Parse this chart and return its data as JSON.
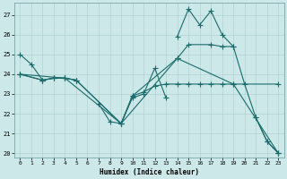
{
  "xlabel": "Humidex (Indice chaleur)",
  "bg_color": "#cce8e8",
  "line_color": "#1a6b6b",
  "grid_color": "#aacccc",
  "xlim": [
    -0.5,
    23.5
  ],
  "ylim": [
    19.8,
    27.6
  ],
  "yticks": [
    20,
    21,
    22,
    23,
    24,
    25,
    26,
    27
  ],
  "xticks": [
    0,
    1,
    2,
    3,
    4,
    5,
    6,
    7,
    8,
    9,
    10,
    11,
    12,
    13,
    14,
    15,
    16,
    17,
    18,
    19,
    20,
    21,
    22,
    23
  ],
  "line1_segments": [
    {
      "x": [
        0,
        1,
        2,
        3,
        4,
        5
      ],
      "y": [
        25.0,
        24.5,
        23.7,
        23.8,
        23.8,
        23.7
      ]
    },
    {
      "x": [
        7,
        8,
        9,
        10,
        11,
        12,
        13
      ],
      "y": [
        22.5,
        21.6,
        21.5,
        22.8,
        23.0,
        24.3,
        22.8
      ]
    },
    {
      "x": [
        14,
        15,
        16,
        17,
        18,
        19
      ],
      "y": [
        25.9,
        27.3,
        26.5,
        27.2,
        26.0,
        25.4
      ]
    },
    {
      "x": [
        21,
        22,
        23
      ],
      "y": [
        21.8,
        20.6,
        20.0
      ]
    }
  ],
  "line2": {
    "x": [
      0,
      2,
      3,
      4,
      5,
      9,
      10,
      11,
      12,
      13,
      14,
      15,
      16,
      17,
      18,
      19,
      23
    ],
    "y": [
      24.0,
      23.7,
      23.8,
      23.8,
      23.7,
      21.5,
      22.9,
      23.1,
      23.4,
      23.5,
      23.5,
      23.5,
      23.5,
      23.5,
      23.5,
      23.5,
      23.5
    ]
  },
  "line3": {
    "x": [
      0,
      2,
      3,
      4,
      5,
      9,
      10,
      14,
      15,
      17,
      18,
      19,
      20,
      21,
      22,
      23
    ],
    "y": [
      24.0,
      23.7,
      23.8,
      23.8,
      23.7,
      21.5,
      22.9,
      24.8,
      25.5,
      25.5,
      25.4,
      25.4,
      23.5,
      21.8,
      20.6,
      20.0
    ]
  },
  "line4": {
    "x": [
      0,
      4,
      9,
      14,
      19,
      23
    ],
    "y": [
      24.0,
      23.8,
      21.5,
      24.8,
      23.5,
      20.0
    ]
  }
}
